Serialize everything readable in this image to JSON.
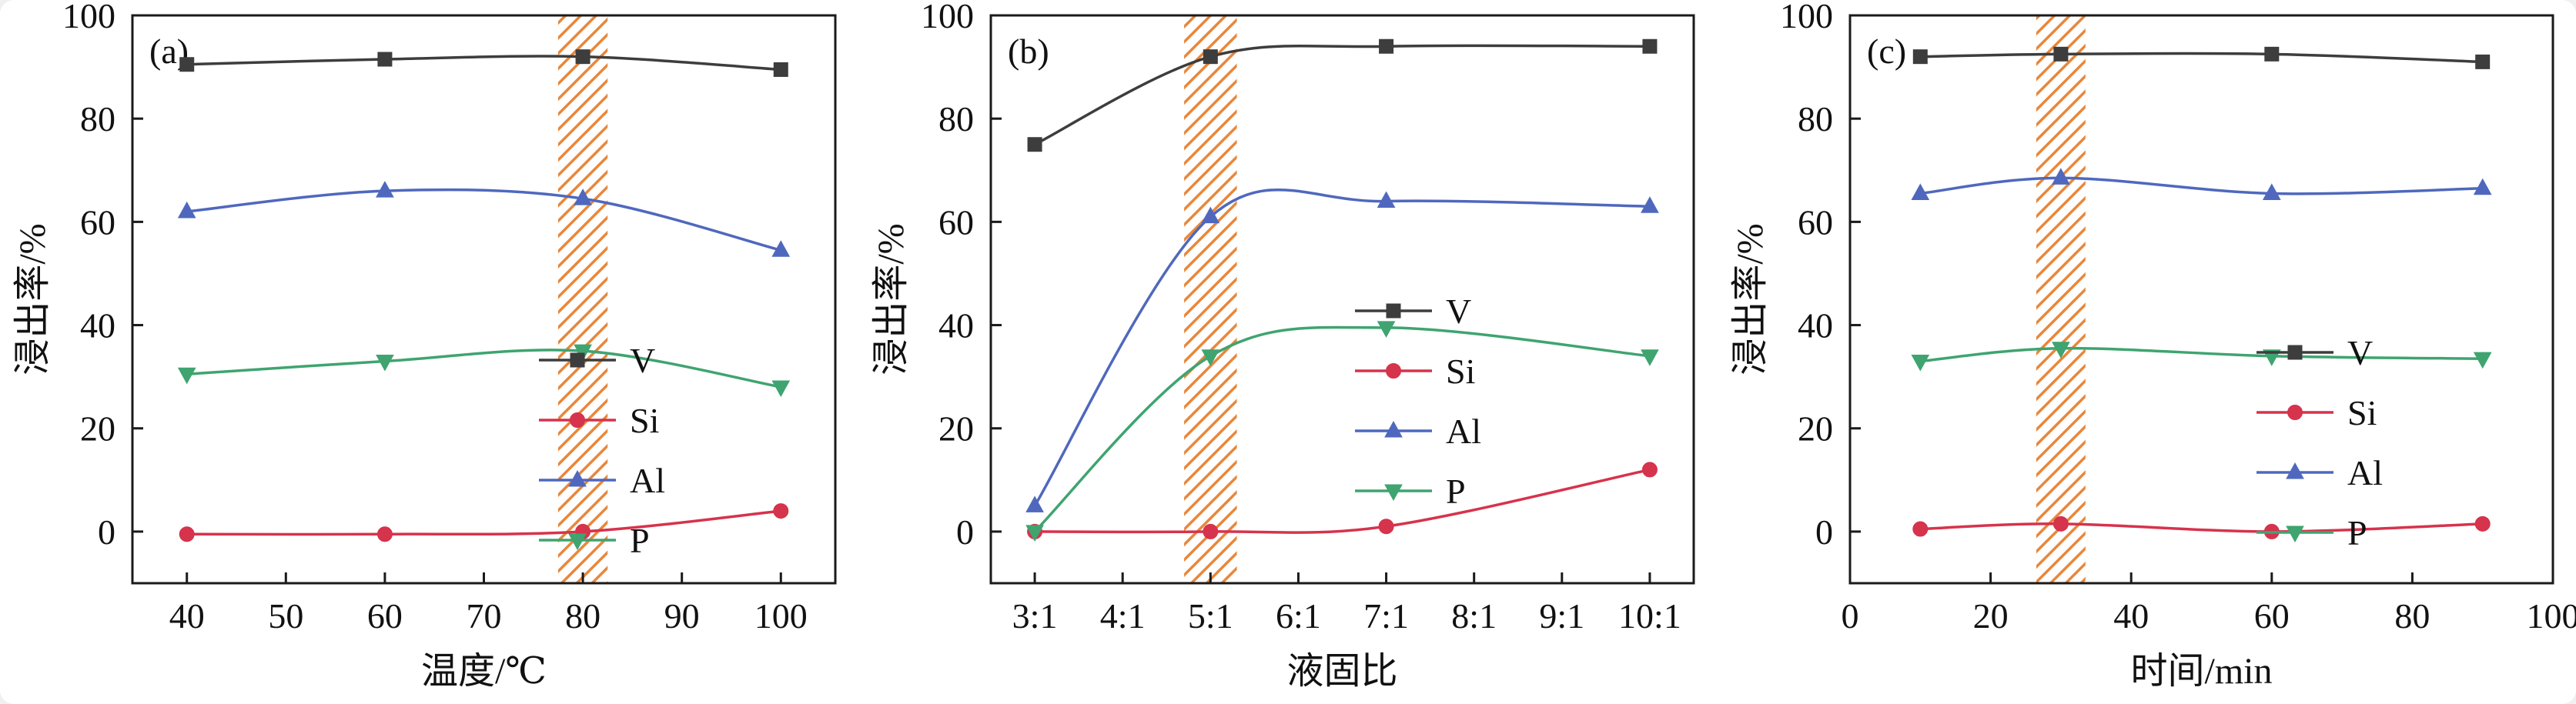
{
  "page": {
    "background": "#eef0f2",
    "panel_background": "#ffffff"
  },
  "colors": {
    "V": "#3d3d3d",
    "Si": "#d6334c",
    "Al": "#4f68be",
    "P": "#3fa470",
    "band": "#e8873b",
    "axis": "#1a1a1a"
  },
  "legend_labels": [
    "V",
    "Si",
    "Al",
    "P"
  ],
  "chart_data": [
    {
      "type": "line",
      "panel_label": "(a)",
      "title": "",
      "xlabel": "温度/℃",
      "ylabel": "浸出率/%",
      "x_type": "numeric",
      "x": [
        40,
        60,
        80,
        100
      ],
      "x_ticks": [
        40,
        50,
        60,
        70,
        80,
        90,
        100
      ],
      "xlim": [
        34.5,
        105.5
      ],
      "ylim": [
        -10,
        100
      ],
      "y_ticks": [
        0,
        20,
        40,
        60,
        80,
        100
      ],
      "grid": false,
      "legend_position": "inside lower right",
      "series": [
        {
          "name": "V",
          "marker": "square",
          "color": "#3d3d3d",
          "values": [
            90.5,
            91.5,
            92.0,
            89.5
          ]
        },
        {
          "name": "Si",
          "marker": "circle",
          "color": "#d6334c",
          "values": [
            -0.5,
            -0.5,
            0.0,
            4.0
          ]
        },
        {
          "name": "Al",
          "marker": "triangle-up",
          "color": "#4f68be",
          "values": [
            62.0,
            66.0,
            64.5,
            54.5
          ]
        },
        {
          "name": "P",
          "marker": "triangle-down",
          "color": "#3fa470",
          "values": [
            30.5,
            33.0,
            35.0,
            28.0
          ]
        }
      ],
      "highlight_band": {
        "x_from": 77.5,
        "x_to": 82.5,
        "color": "#e8873b",
        "style": "hatched"
      }
    },
    {
      "type": "line",
      "panel_label": "(b)",
      "title": "",
      "xlabel": "液固比",
      "ylabel": "浸出率/%",
      "x_type": "category",
      "categories": [
        "3:1",
        "4:1",
        "5:1",
        "6:1",
        "7:1",
        "8:1",
        "9:1",
        "10:1"
      ],
      "x_index": [
        0,
        2,
        4,
        7
      ],
      "xlim": [
        -0.5,
        7.5
      ],
      "ylim": [
        -10,
        100
      ],
      "y_ticks": [
        0,
        20,
        40,
        60,
        80,
        100
      ],
      "grid": false,
      "legend_position": "inside right",
      "series": [
        {
          "name": "V",
          "marker": "square",
          "color": "#3d3d3d",
          "values": [
            75.0,
            92.0,
            94.0,
            94.0
          ]
        },
        {
          "name": "Si",
          "marker": "circle",
          "color": "#d6334c",
          "values": [
            0.0,
            0.0,
            1.0,
            12.0
          ]
        },
        {
          "name": "Al",
          "marker": "triangle-up",
          "color": "#4f68be",
          "values": [
            5.0,
            61.0,
            64.0,
            63.0
          ]
        },
        {
          "name": "P",
          "marker": "triangle-down",
          "color": "#3fa470",
          "values": [
            0.0,
            34.0,
            39.5,
            34.0
          ]
        }
      ],
      "highlight_band": {
        "x_from": 1.7,
        "x_to": 2.3,
        "color": "#e8873b",
        "style": "hatched"
      }
    },
    {
      "type": "line",
      "panel_label": "(c)",
      "title": "",
      "xlabel": "时间/min",
      "ylabel": "浸出率/%",
      "x_type": "numeric",
      "x": [
        10,
        30,
        60,
        90
      ],
      "x_ticks": [
        0,
        20,
        40,
        60,
        80,
        100
      ],
      "xlim": [
        0,
        100
      ],
      "ylim": [
        -10,
        100
      ],
      "y_ticks": [
        0,
        20,
        40,
        60,
        80,
        100
      ],
      "grid": false,
      "legend_position": "inside lower right",
      "series": [
        {
          "name": "V",
          "marker": "square",
          "color": "#3d3d3d",
          "values": [
            92.0,
            92.5,
            92.5,
            91.0
          ]
        },
        {
          "name": "Si",
          "marker": "circle",
          "color": "#d6334c",
          "values": [
            0.5,
            1.5,
            0.0,
            1.5
          ]
        },
        {
          "name": "Al",
          "marker": "triangle-up",
          "color": "#4f68be",
          "values": [
            65.5,
            68.5,
            65.5,
            66.5
          ]
        },
        {
          "name": "P",
          "marker": "triangle-down",
          "color": "#3fa470",
          "values": [
            33.0,
            35.5,
            34.0,
            33.5
          ]
        }
      ],
      "highlight_band": {
        "x_from": 26.5,
        "x_to": 33.5,
        "color": "#e8873b",
        "style": "hatched"
      }
    }
  ]
}
